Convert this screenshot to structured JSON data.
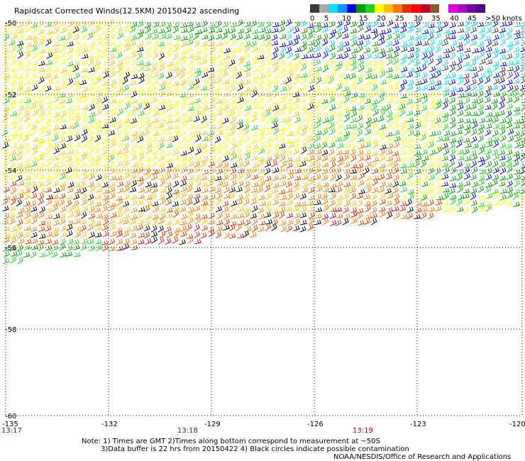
{
  "title": "Rapidscat Corrected Winds(12.5KM) 20150422 ascending",
  "legend": {
    "labels": [
      "0",
      "5",
      "10",
      "15",
      "20",
      "25",
      "30",
      "35",
      "40",
      "45",
      ">50 knots"
    ],
    "colors": [
      "#3a3a3a",
      "#a8a8a8",
      "#00e0ff",
      "#0094ff",
      "#0000dc",
      "#009a00",
      "#20d020",
      "#ffff00",
      "#ffc000",
      "#ff7700",
      "#e03000",
      "#ff0000",
      "#c00030",
      "#8b5a2b",
      "#ffffff",
      "#e000e0",
      "#b000c0",
      "#7000a0",
      "#500080"
    ]
  },
  "axes": {
    "longitude_ticks": [
      "-135",
      "-132",
      "-129",
      "-126",
      "-123",
      "-120"
    ],
    "latitude_ticks": [
      "-50",
      "-52",
      "-54",
      "-56",
      "-58",
      "-60"
    ]
  },
  "times": [
    "13:17",
    "13:18",
    "13:19"
  ],
  "notes": [
    "Note: 1) Times are GMT 2)Times along bottom correspond to measurement at ~50S",
    "3)Data buffer is 22 hrs from 20150422 4) Black circles indicate possible contamination"
  ],
  "credit": "NOAA/NESDIS/Office of Research and Applications"
}
